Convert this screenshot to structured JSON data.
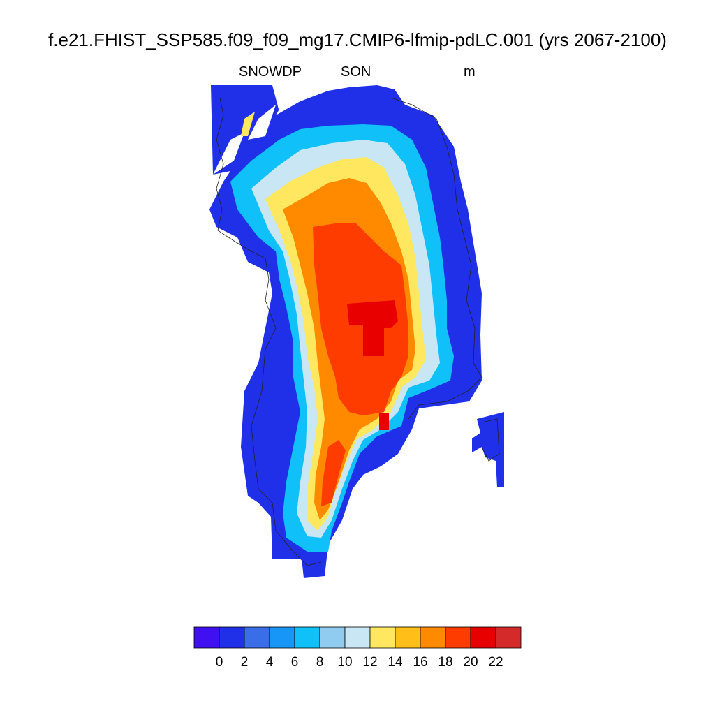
{
  "title": "f.e21.FHIST_SSP585.f09_f09_mg17.CMIP6-lfmip-pdLC.001 (yrs 2067-2100)",
  "variable": "SNOWDP",
  "season": "SON",
  "units": "m",
  "colorbar": {
    "colors": [
      "#4010f0",
      "#2030e8",
      "#3a6ee8",
      "#1896f8",
      "#10c0f8",
      "#90ccf0",
      "#c8e6f4",
      "#ffe860",
      "#ffbe18",
      "#ff8a00",
      "#ff3c00",
      "#e80000",
      "#d42a2a"
    ],
    "labels": [
      "0",
      "2",
      "4",
      "6",
      "8",
      "10",
      "12",
      "14",
      "16",
      "18",
      "20",
      "22"
    ]
  }
}
